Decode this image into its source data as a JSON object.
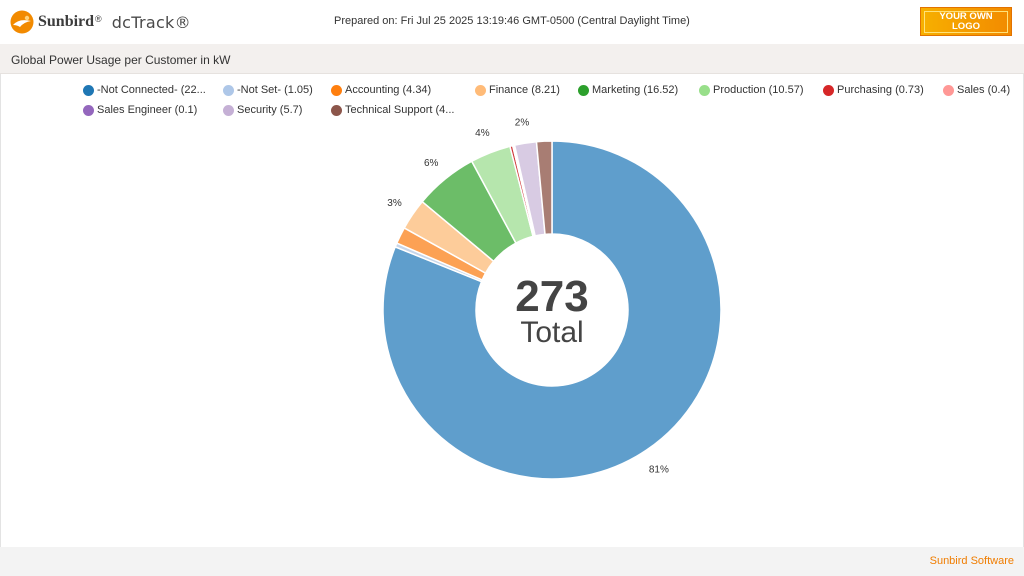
{
  "header": {
    "brand_name": "Sunbird",
    "brand_mark": "®",
    "product_name": "dcTrack®",
    "prepared_on": "Prepared on: Fri Jul 25 2025 13:19:46 GMT-0500 (Central Daylight Time)",
    "logo_text": "YOUR OWN\nLOGO",
    "sun_icon": "sunbird-sun-icon"
  },
  "panel": {
    "title": "Global Power Usage per Customer in kW"
  },
  "legend": [
    {
      "label": "-Not Connected- (22...",
      "color": "#1f77b4"
    },
    {
      "label": "-Not Set- (1.05)",
      "color": "#aec7e8"
    },
    {
      "label": "Accounting (4.34)",
      "color": "#ff7f0e"
    },
    {
      "label": "Finance (8.21)",
      "color": "#ffbb78"
    },
    {
      "label": "Marketing (16.52)",
      "color": "#2ca02c"
    },
    {
      "label": "Production (10.57)",
      "color": "#98df8a"
    },
    {
      "label": "Purchasing (0.73)",
      "color": "#d62728"
    },
    {
      "label": "Sales (0.4)",
      "color": "#ff9896"
    },
    {
      "label": "Sales Engineer (0.1)",
      "color": "#9467bd"
    },
    {
      "label": "Security (5.7)",
      "color": "#c5b0d5"
    },
    {
      "label": "Technical Support (4...",
      "color": "#8c564b"
    }
  ],
  "chart_data": {
    "type": "pie",
    "subtype": "donut",
    "title": "Global Power Usage per Customer in kW",
    "center_value": "273",
    "center_label": "Total",
    "start_angle_deg": 0,
    "direction": "clockwise",
    "slices": [
      {
        "name": "-Not Connected-",
        "value": 221.4,
        "color": "#5f9ecc",
        "label": "81%"
      },
      {
        "name": "-Not Set-",
        "value": 1.05,
        "color": "#c7d6ea",
        "label": ""
      },
      {
        "name": "Accounting",
        "value": 4.34,
        "color": "#fca154",
        "label": ""
      },
      {
        "name": "Finance",
        "value": 8.21,
        "color": "#fdcc9a",
        "label": "3%"
      },
      {
        "name": "Marketing",
        "value": 16.52,
        "color": "#6cbd68",
        "label": "6%"
      },
      {
        "name": "Production",
        "value": 10.57,
        "color": "#b6e6ad",
        "label": "4%"
      },
      {
        "name": "Purchasing",
        "value": 0.73,
        "color": "#d0393a",
        "label": ""
      },
      {
        "name": "Sales",
        "value": 0.4,
        "color": "#fbb4b3",
        "label": ""
      },
      {
        "name": "Sales Engineer",
        "value": 0.1,
        "color": "#a48bc7",
        "label": ""
      },
      {
        "name": "Security",
        "value": 5.7,
        "color": "#d8cbe3",
        "label": "2%"
      },
      {
        "name": "Technical Support",
        "value": 4.0,
        "color": "#a87d73",
        "label": ""
      }
    ]
  },
  "footer": {
    "text": "Sunbird Software"
  }
}
